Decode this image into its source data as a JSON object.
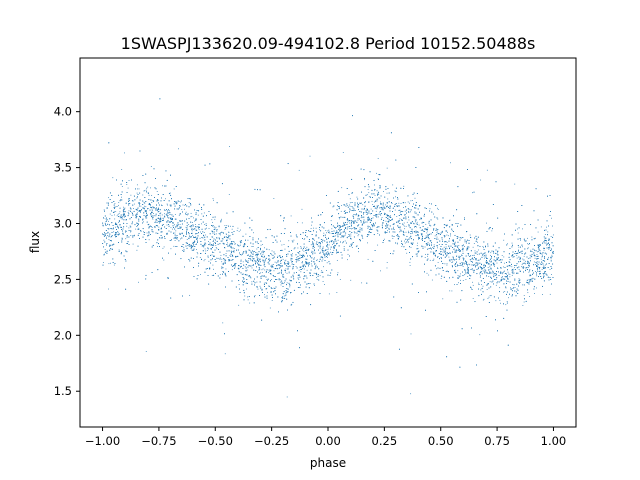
{
  "chart_data": {
    "type": "scatter",
    "title": "1SWASPJ133620.09-494102.8 Period 10152.50488s",
    "xlabel": "phase",
    "ylabel": "flux",
    "xlim": [
      -1.1,
      1.1
    ],
    "ylim": [
      1.18,
      4.48
    ],
    "grid": false,
    "marker_color": "#1f77b4",
    "x_ticks": [
      -1.0,
      -0.75,
      -0.5,
      -0.25,
      0.0,
      0.25,
      0.5,
      0.75,
      1.0
    ],
    "x_tick_labels": [
      "−1.00",
      "−0.75",
      "−0.50",
      "−0.25",
      "0.00",
      "0.25",
      "0.50",
      "0.75",
      "1.00"
    ],
    "y_ticks": [
      1.5,
      2.0,
      2.5,
      3.0,
      3.5,
      4.0
    ],
    "y_tick_labels": [
      "1.5",
      "2.0",
      "2.5",
      "3.0",
      "3.5",
      "4.0"
    ],
    "series": [
      {
        "x": [
          -1.0,
          -0.9,
          -0.8,
          -0.7,
          -0.6,
          -0.5,
          -0.4,
          -0.3,
          -0.2,
          -0.1,
          0.0,
          0.1,
          0.2,
          0.3,
          0.4,
          0.5,
          0.6,
          0.7,
          0.8,
          0.9,
          1.0
        ],
        "y": [
          2.9,
          3.02,
          3.1,
          3.04,
          2.92,
          2.82,
          2.7,
          2.6,
          2.58,
          2.66,
          2.82,
          3.0,
          3.1,
          3.05,
          2.92,
          2.82,
          2.7,
          2.6,
          2.58,
          2.64,
          2.72
        ]
      }
    ]
  }
}
